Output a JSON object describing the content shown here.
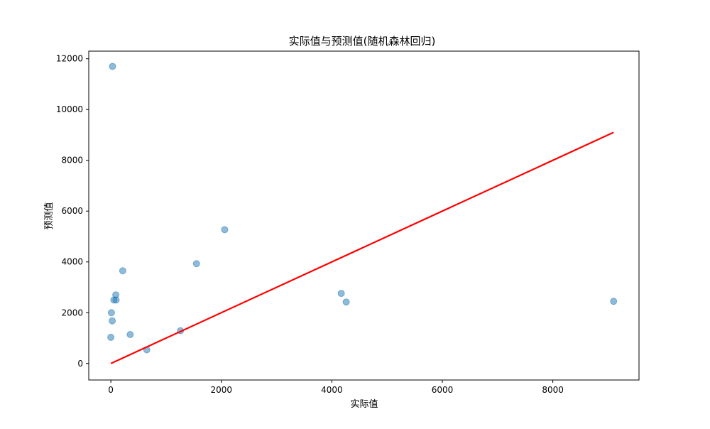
{
  "chart_data": {
    "type": "scatter",
    "title": "实际值与预测值(随机森林回归)",
    "xlabel": "实际值",
    "ylabel": "预测值",
    "xlim": [
      -400,
      9560
    ],
    "ylim": [
      -650,
      12300
    ],
    "xticks": [
      0,
      2000,
      4000,
      6000,
      8000
    ],
    "yticks": [
      0,
      2000,
      4000,
      6000,
      8000,
      10000,
      12000
    ],
    "grid": false,
    "series": [
      {
        "kind": "scatter",
        "color": "#1f77b4",
        "alpha": 0.5,
        "points": [
          {
            "x": 30,
            "y": 11700
          },
          {
            "x": 2060,
            "y": 5270
          },
          {
            "x": 1550,
            "y": 3930
          },
          {
            "x": 215,
            "y": 3650
          },
          {
            "x": 90,
            "y": 2700
          },
          {
            "x": 55,
            "y": 2500
          },
          {
            "x": 95,
            "y": 2500
          },
          {
            "x": 10,
            "y": 2000
          },
          {
            "x": 25,
            "y": 1680
          },
          {
            "x": 0,
            "y": 1030
          },
          {
            "x": 350,
            "y": 1140
          },
          {
            "x": 1260,
            "y": 1290
          },
          {
            "x": 650,
            "y": 540
          },
          {
            "x": 4170,
            "y": 2760
          },
          {
            "x": 4260,
            "y": 2420
          },
          {
            "x": 9100,
            "y": 2450
          }
        ]
      },
      {
        "kind": "line",
        "color": "#ff0000",
        "points": [
          {
            "x": 0,
            "y": 0
          },
          {
            "x": 9100,
            "y": 9100
          }
        ]
      }
    ]
  }
}
